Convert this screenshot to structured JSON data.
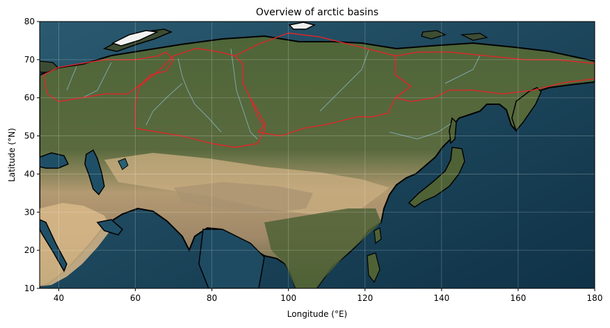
{
  "figure": {
    "title": "Overview of arctic basins",
    "xlabel": "Longitude (°E)",
    "ylabel": "Latitude (°N)"
  },
  "chart_data": {
    "type": "map",
    "title": "Overview of arctic basins",
    "xlabel": "Longitude (°E)",
    "ylabel": "Latitude (°N)",
    "xlim": [
      35,
      180
    ],
    "ylim": [
      10,
      80
    ],
    "xticks": [
      40,
      60,
      80,
      100,
      120,
      140,
      160,
      180
    ],
    "yticks": [
      10,
      20,
      30,
      40,
      50,
      60,
      70,
      80
    ],
    "grid": true,
    "colors": {
      "ocean": "#1f4f66",
      "ocean_deep": "#133a4f",
      "land_forest": "#4a5e34",
      "land_desert": "#c9a878",
      "coastline": "#000000",
      "basin_outline": "#e0262a",
      "rivers": "#8fbad0"
    },
    "basins": [
      {
        "outline": [
          [
            36,
            66
          ],
          [
            40,
            68
          ],
          [
            46,
            69
          ],
          [
            52,
            70
          ],
          [
            60,
            70
          ],
          [
            66,
            71
          ],
          [
            68,
            72
          ],
          [
            70,
            70
          ],
          [
            68,
            67
          ],
          [
            64,
            66
          ],
          [
            62,
            64
          ],
          [
            58,
            61
          ],
          [
            52,
            61
          ],
          [
            46,
            60
          ],
          [
            40,
            59
          ],
          [
            37,
            61
          ],
          [
            36,
            66
          ]
        ]
      },
      {
        "outline": [
          [
            61,
            63
          ],
          [
            66,
            67
          ],
          [
            70,
            71
          ],
          [
            76,
            73
          ],
          [
            82,
            72
          ],
          [
            86,
            71
          ],
          [
            88,
            69
          ],
          [
            88,
            64
          ],
          [
            90,
            60
          ],
          [
            92,
            55
          ],
          [
            94,
            52
          ],
          [
            92,
            48
          ],
          [
            86,
            47
          ],
          [
            80,
            48
          ],
          [
            72,
            50
          ],
          [
            66,
            51
          ],
          [
            60,
            52
          ],
          [
            60,
            58
          ],
          [
            61,
            63
          ]
        ]
      },
      {
        "outline": [
          [
            86,
            71
          ],
          [
            92,
            74
          ],
          [
            100,
            77
          ],
          [
            108,
            76
          ],
          [
            116,
            74
          ],
          [
            124,
            72
          ],
          [
            128,
            71
          ],
          [
            128,
            66
          ],
          [
            132,
            63
          ],
          [
            128,
            60
          ],
          [
            126,
            56
          ],
          [
            122,
            55
          ],
          [
            118,
            55
          ],
          [
            110,
            53
          ],
          [
            104,
            52
          ],
          [
            98,
            50
          ],
          [
            92,
            51
          ],
          [
            94,
            53
          ],
          [
            90,
            60
          ],
          [
            88,
            64
          ],
          [
            88,
            69
          ],
          [
            86,
            71
          ]
        ]
      },
      {
        "outline": [
          [
            128,
            71
          ],
          [
            134,
            72
          ],
          [
            142,
            72
          ],
          [
            152,
            71
          ],
          [
            162,
            70
          ],
          [
            170,
            70
          ],
          [
            180,
            69
          ],
          [
            180,
            65
          ],
          [
            172,
            64
          ],
          [
            164,
            62
          ],
          [
            156,
            61
          ],
          [
            148,
            62
          ],
          [
            142,
            62
          ],
          [
            138,
            60
          ],
          [
            132,
            59
          ],
          [
            128,
            60
          ],
          [
            132,
            63
          ],
          [
            128,
            66
          ],
          [
            128,
            71
          ]
        ]
      }
    ]
  }
}
